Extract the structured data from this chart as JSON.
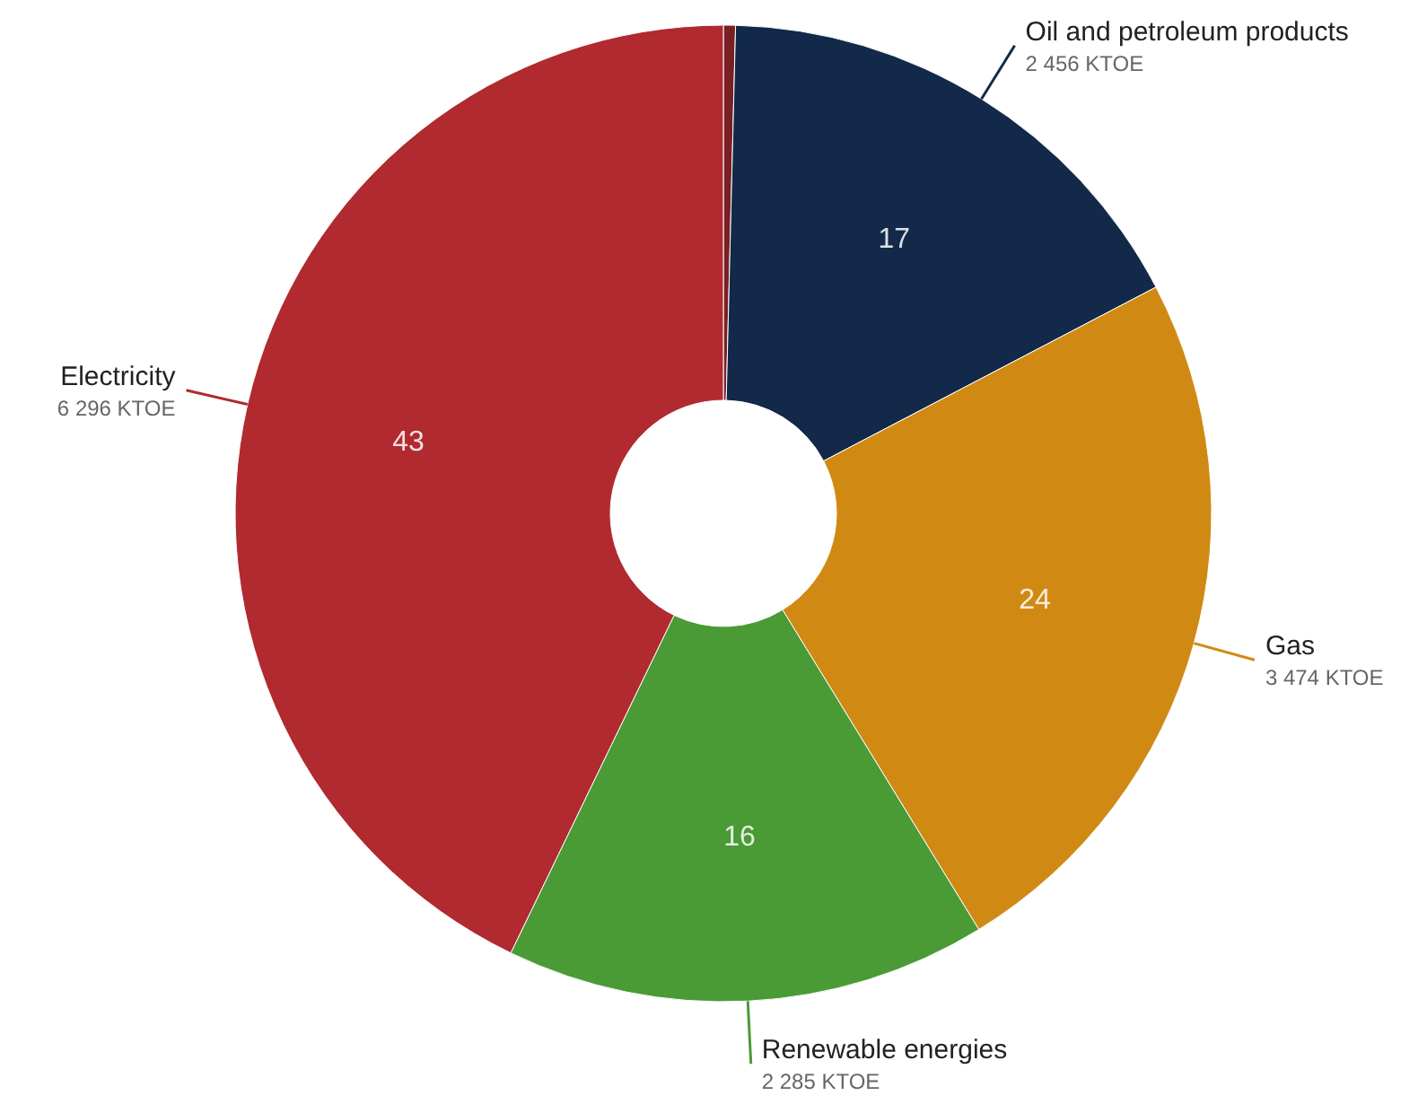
{
  "chart_data": {
    "type": "donut",
    "categories": [
      null,
      "Oil and petroleum products",
      "Gas",
      "Renewable energies",
      "Electricity"
    ],
    "values": [
      0.4,
      17,
      24,
      16,
      43
    ],
    "colors": [
      "#7a1f24",
      "#12294a",
      "#d08a14",
      "#4a9a35",
      "#b02a30"
    ],
    "value_labels": [
      null,
      "17",
      "24",
      "16",
      "43"
    ],
    "annotations": [
      "2 456 KTOE",
      "3 474 KTOE",
      "2 285 KTOE",
      "6 296 KTOE"
    ]
  }
}
